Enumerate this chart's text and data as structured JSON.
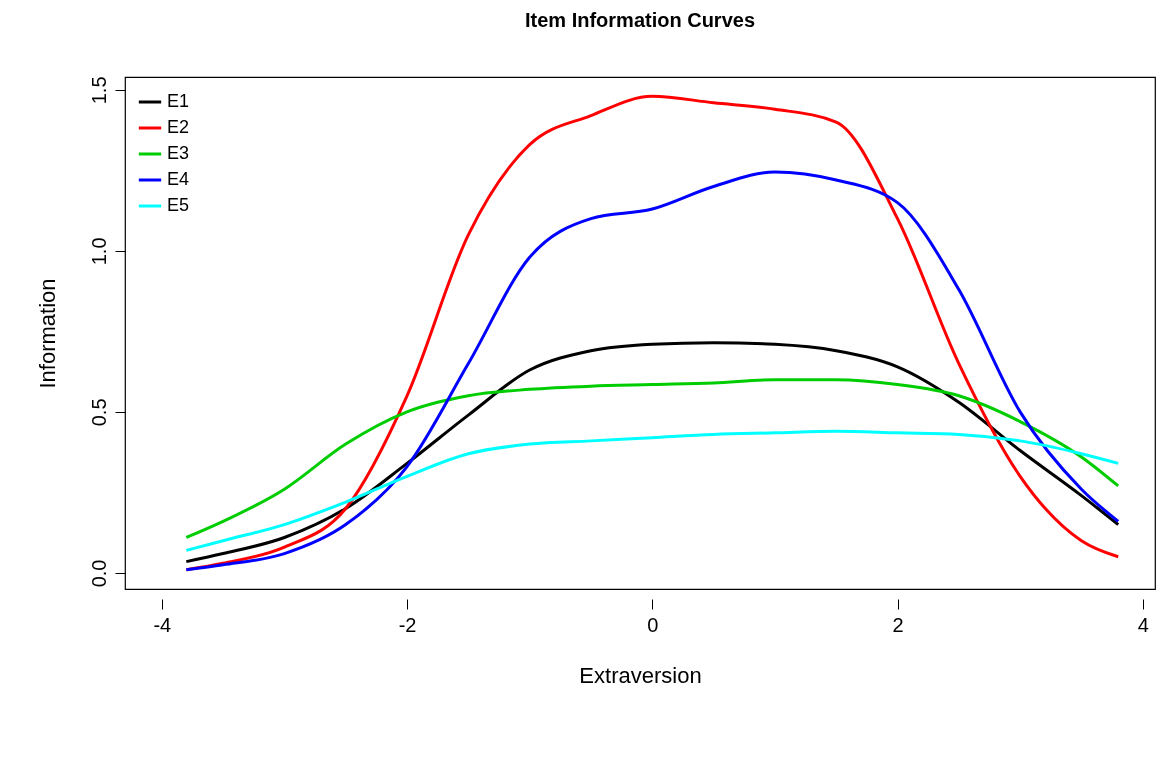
{
  "chart_data": {
    "type": "line",
    "title": "Item Information Curves",
    "xlabel": "Extraversion",
    "ylabel": "Information",
    "x": [
      -3.8,
      -3.5,
      -3,
      -2.5,
      -2,
      -1.5,
      -1,
      -0.5,
      0,
      0.5,
      1,
      1.5,
      2,
      2.5,
      3,
      3.5,
      3.8
    ],
    "series": [
      {
        "name": "E1",
        "color": "#000000",
        "values": [
          0.035,
          0.06,
          0.11,
          0.2,
          0.34,
          0.49,
          0.63,
          0.69,
          0.71,
          0.715,
          0.71,
          0.69,
          0.64,
          0.53,
          0.38,
          0.24,
          0.15
        ]
      },
      {
        "name": "E2",
        "color": "#ff0000",
        "values": [
          0.01,
          0.03,
          0.08,
          0.2,
          0.55,
          1.05,
          1.33,
          1.42,
          1.48,
          1.46,
          1.44,
          1.4,
          1.1,
          0.65,
          0.3,
          0.1,
          0.05
        ]
      },
      {
        "name": "E3",
        "color": "#00cd00",
        "values": [
          0.11,
          0.16,
          0.26,
          0.4,
          0.5,
          0.55,
          0.57,
          0.58,
          0.585,
          0.59,
          0.6,
          0.6,
          0.585,
          0.55,
          0.47,
          0.36,
          0.27
        ]
      },
      {
        "name": "E4",
        "color": "#0000ff",
        "values": [
          0.01,
          0.025,
          0.06,
          0.15,
          0.33,
          0.65,
          0.98,
          1.1,
          1.13,
          1.2,
          1.245,
          1.22,
          1.15,
          0.88,
          0.5,
          0.26,
          0.16
        ]
      },
      {
        "name": "E5",
        "color": "#00ffff",
        "values": [
          0.07,
          0.1,
          0.15,
          0.22,
          0.3,
          0.37,
          0.4,
          0.41,
          0.42,
          0.43,
          0.435,
          0.44,
          0.435,
          0.43,
          0.41,
          0.37,
          0.34
        ]
      }
    ],
    "xlim": [
      -4.3,
      4.1
    ],
    "ylim": [
      -0.05,
      1.54
    ],
    "xticks": [
      -4,
      -2,
      0,
      2,
      4
    ],
    "yticks": [
      {
        "value": 0,
        "label": "0.0"
      },
      0.5,
      {
        "value": 1,
        "label": "1.0"
      },
      1.5
    ],
    "grid": false,
    "legend": "top left",
    "marker": "none",
    "line_style": "solid"
  }
}
